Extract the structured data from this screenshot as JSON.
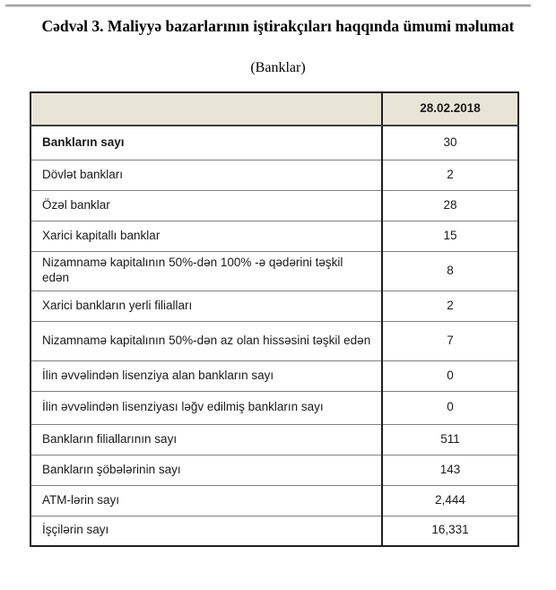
{
  "page": {
    "title": "Cədvəl 3. Maliyyə bazarlarının iştirakçıları haqqında ümumi məlumat",
    "subtitle": "(Banklar)"
  },
  "table": {
    "header": {
      "label_column": "",
      "date_column": "28.02.2018"
    },
    "rows": [
      {
        "label": "Bankların sayı",
        "value": "30",
        "bold": true
      },
      {
        "label": "Dövlət bankları",
        "value": "2",
        "bold": false
      },
      {
        "label": "Özəl banklar",
        "value": "28",
        "bold": false
      },
      {
        "label": "Xarici kapitallı banklar",
        "value": "15",
        "bold": false
      },
      {
        "label": "Nizamnamə kapitalının 50%-dən 100% -ə qədərini təşkil edən",
        "value": "8",
        "bold": false
      },
      {
        "label": "Xarici bankların yerli filialları",
        "value": "2",
        "bold": false
      },
      {
        "label": "Nizamnamə kapitalının 50%-dən az olan hissəsini  təşkil edən",
        "value": "7",
        "bold": false
      },
      {
        "label": "İlin əvvəlindən lisenziya alan bankların sayı",
        "value": "0",
        "bold": false
      },
      {
        "label": "İlin əvvəlindən lisenziyası ləğv edilmiş bankların sayı",
        "value": "0",
        "bold": false
      },
      {
        "label": "Bankların filiallarının sayı",
        "value": "511",
        "bold": false
      },
      {
        "label": "Bankların şöbələrinin sayı",
        "value": "143",
        "bold": false
      },
      {
        "label": "ATM-lərin sayı",
        "value": "2,444",
        "bold": false
      },
      {
        "label": "İşçilərin sayı",
        "value": "16,331",
        "bold": false
      }
    ]
  },
  "colors": {
    "header_bg": "#e9e5d6",
    "outer_border": "#1f1f1f",
    "row_line": "#808080",
    "text": "#1a1a1a",
    "top_rule": "#8a8a8a"
  }
}
